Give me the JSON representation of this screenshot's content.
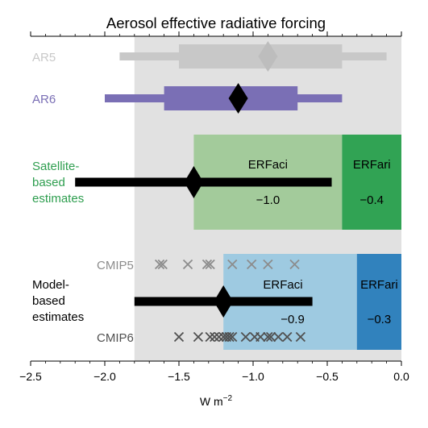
{
  "chart_data": {
    "type": "forest",
    "title": "Aerosol effective radiative forcing",
    "xlabel": "W m",
    "xlabel_sup": "−2",
    "xlim": [
      -2.5,
      0.0
    ],
    "xticks": [
      {
        "value": -2.5,
        "label": "−2.5"
      },
      {
        "value": -2.0,
        "label": "−2.0"
      },
      {
        "value": -1.5,
        "label": "−1.5"
      },
      {
        "value": -1.0,
        "label": "−1.0"
      },
      {
        "value": -0.5,
        "label": "−0.5"
      },
      {
        "value": 0.0,
        "label": "0.0"
      }
    ],
    "minor_tick_step": 0.1,
    "grid": false,
    "background_band": {
      "x_from": -1.8,
      "x_to": 0.0,
      "color": "#e1e1e1"
    },
    "assessments": [
      {
        "name": "AR5",
        "color": "#c8c8c8",
        "central": -0.9,
        "likely": [
          -1.5,
          -0.4
        ],
        "very_likely": [
          -1.9,
          -0.1
        ]
      },
      {
        "name": "AR6",
        "color": "#7a6fb5",
        "central": -1.1,
        "likely": [
          -1.6,
          -0.7
        ],
        "very_likely": [
          -2.0,
          -0.4
        ]
      }
    ],
    "satellite": {
      "label_lines": [
        "Satellite-",
        "based",
        "estimates"
      ],
      "label_color": "#2e9e4f",
      "erfaci": {
        "name": "ERFaci",
        "value_label": "−1.0",
        "from": -1.4,
        "to": -0.4,
        "color": "#a3cb9b"
      },
      "erfari": {
        "name": "ERFari",
        "value_label": "−0.4",
        "from": -0.4,
        "to": 0.0,
        "color": "#31a354"
      },
      "central": -1.4,
      "range": [
        -2.2,
        -0.47
      ]
    },
    "model": {
      "label_lines": [
        "Model-",
        "based",
        "estimates"
      ],
      "erfaci": {
        "name": "ERFaci",
        "value_label": "−0.9",
        "from": -1.2,
        "to": -0.3,
        "color": "#9ecae1"
      },
      "erfari": {
        "name": "ERFari",
        "value_label": "−0.3",
        "from": -0.3,
        "to": 0.0,
        "color": "#3182bd"
      },
      "central": -1.2,
      "range": [
        -1.8,
        -0.6
      ],
      "cmip5": {
        "name": "CMIP5",
        "color": "#8c8c8c",
        "values": [
          -1.63,
          -1.61,
          -1.44,
          -1.31,
          -1.29,
          -1.14,
          -1.01,
          -0.9,
          -0.72
        ]
      },
      "cmip6": {
        "name": "CMIP6",
        "color": "#505050",
        "values": [
          -1.5,
          -1.37,
          -1.29,
          -1.26,
          -1.23,
          -1.2,
          -1.18,
          -1.16,
          -1.14,
          -1.05,
          -0.99,
          -0.95,
          -0.9,
          -0.88,
          -0.83,
          -0.77,
          -0.68
        ]
      }
    }
  }
}
